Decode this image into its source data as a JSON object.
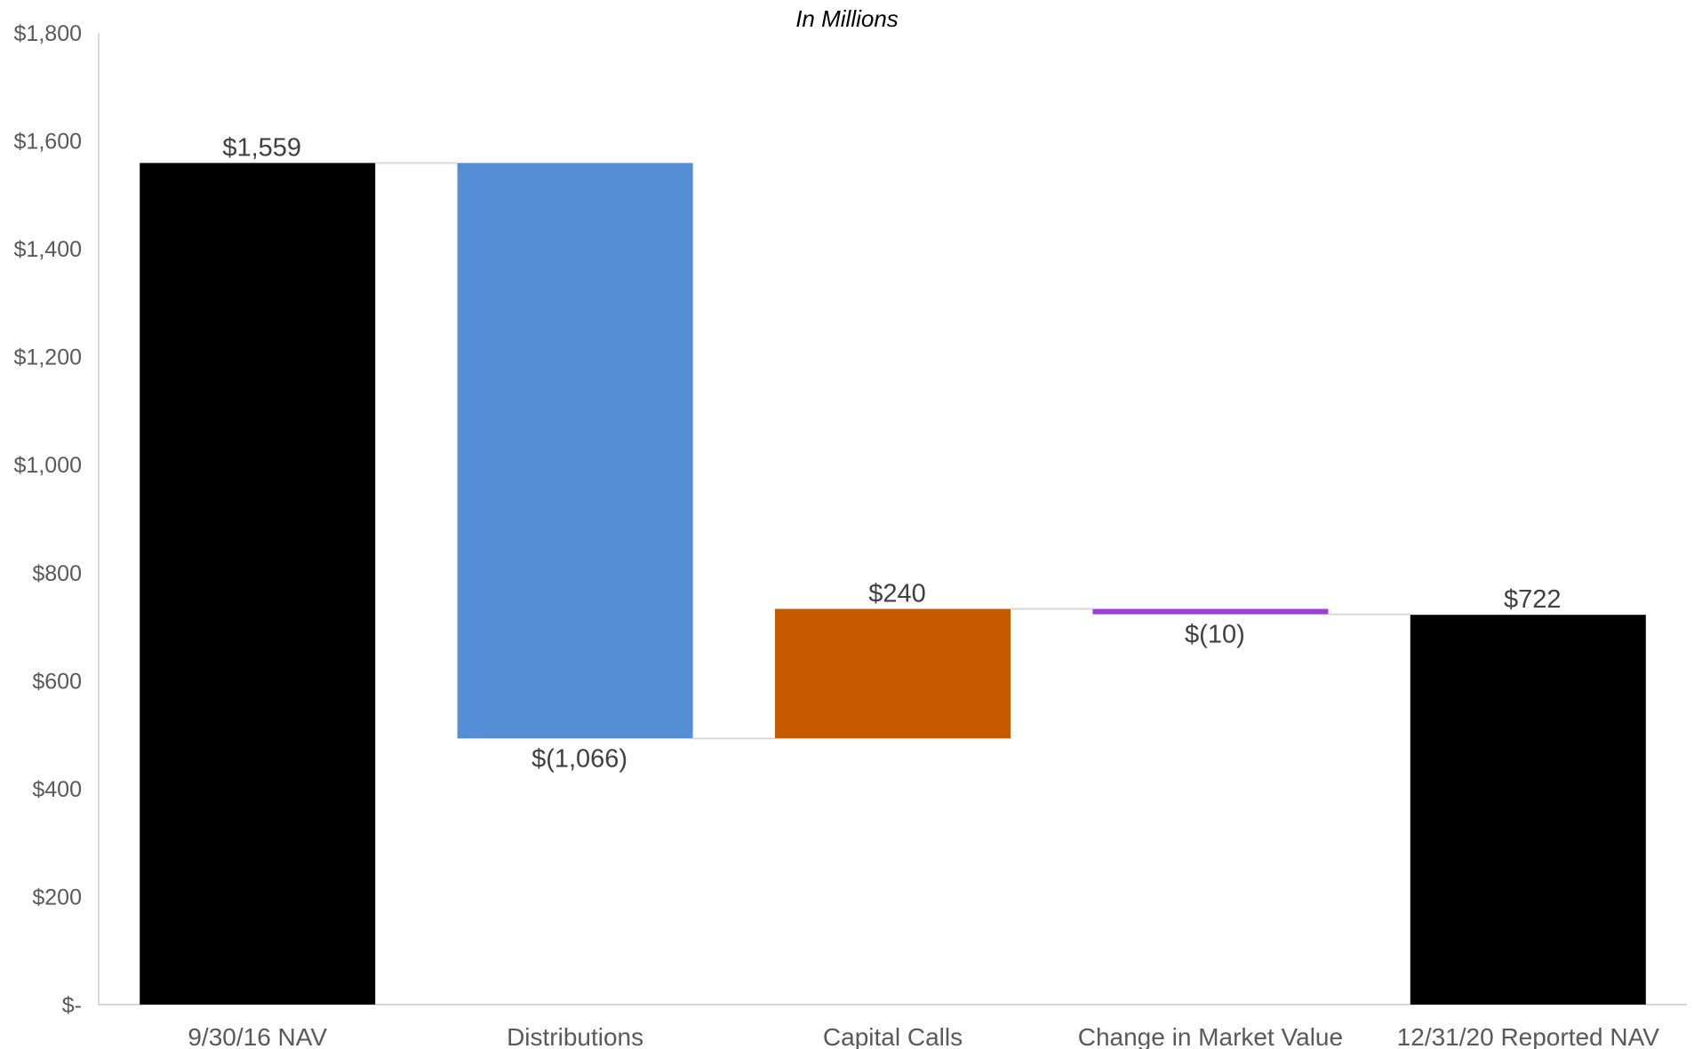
{
  "chart_data": {
    "type": "waterfall",
    "title": "In Millions",
    "xlabel": "",
    "ylabel": "",
    "ylim": [
      0,
      1800
    ],
    "y_ticks": [
      {
        "value": 0,
        "label": "$-"
      },
      {
        "value": 200,
        "label": "$200"
      },
      {
        "value": 400,
        "label": "$400"
      },
      {
        "value": 600,
        "label": "$600"
      },
      {
        "value": 800,
        "label": "$800"
      },
      {
        "value": 1000,
        "label": "$1,000"
      },
      {
        "value": 1200,
        "label": "$1,200"
      },
      {
        "value": 1400,
        "label": "$1,400"
      },
      {
        "value": 1600,
        "label": "$1,600"
      },
      {
        "value": 1800,
        "label": "$1,800"
      }
    ],
    "grid": false,
    "legend": "none",
    "categories": [
      "9/30/16 NAV",
      "Distributions",
      "Capital Calls",
      "Change in Market Value",
      "12/31/20 Reported NAV"
    ],
    "bars": [
      {
        "category": "9/30/16 NAV",
        "kind": "total",
        "value": 1559,
        "start": 0,
        "end": 1559,
        "label": "$1,559",
        "color": "#000000"
      },
      {
        "category": "Distributions",
        "kind": "decrease",
        "value": -1066,
        "start": 1559,
        "end": 493,
        "label": "$(1,066)",
        "color": "#558ED5"
      },
      {
        "category": "Capital Calls",
        "kind": "increase",
        "value": 240,
        "start": 493,
        "end": 733,
        "label": "$240",
        "color": "#C55A00"
      },
      {
        "category": "Change in Market Value",
        "kind": "decrease",
        "value": -10,
        "start": 733,
        "end": 723,
        "label": "$(10)",
        "color": "#9B3FDB"
      },
      {
        "category": "12/31/20 Reported NAV",
        "kind": "total",
        "value": 722,
        "start": 0,
        "end": 722,
        "label": "$722",
        "color": "#000000"
      }
    ],
    "colors": {
      "axis": "#D9D9D9",
      "tick_text": "#595959",
      "data_label": "#404040",
      "connector": "#D9D9D9",
      "title": "#000000"
    }
  }
}
